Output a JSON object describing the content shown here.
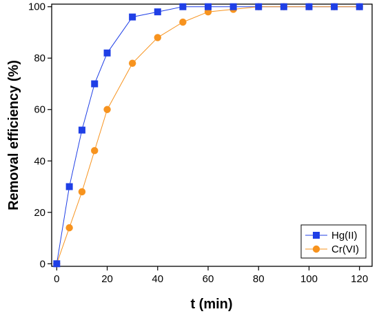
{
  "chart_data": {
    "type": "line",
    "xlabel": "t (min)",
    "ylabel": "Removal efficiency (%)",
    "xlim": [
      -2,
      125
    ],
    "ylim": [
      -1,
      101
    ],
    "xticks": [
      0,
      20,
      40,
      60,
      80,
      100,
      120
    ],
    "yticks": [
      0,
      20,
      40,
      60,
      80,
      100
    ],
    "grid": false,
    "legend_position": "bottom-right",
    "series": [
      {
        "name": "Hg(II)",
        "color": "#1f3fe6",
        "marker": "square",
        "x": [
          0,
          5,
          10,
          15,
          20,
          30,
          40,
          50,
          60,
          70,
          80,
          90,
          100,
          110,
          120
        ],
        "y": [
          0,
          30,
          52,
          70,
          82,
          96,
          98,
          100,
          100,
          100,
          100,
          100,
          100,
          100,
          100
        ]
      },
      {
        "name": "Cr(VI)",
        "color": "#f7931e",
        "marker": "circle",
        "x": [
          0,
          5,
          10,
          15,
          20,
          30,
          40,
          50,
          60,
          70,
          80,
          90,
          100,
          110,
          120
        ],
        "y": [
          0,
          14,
          28,
          44,
          60,
          78,
          88,
          94,
          98,
          99,
          100,
          100,
          100,
          100,
          100
        ]
      }
    ]
  }
}
